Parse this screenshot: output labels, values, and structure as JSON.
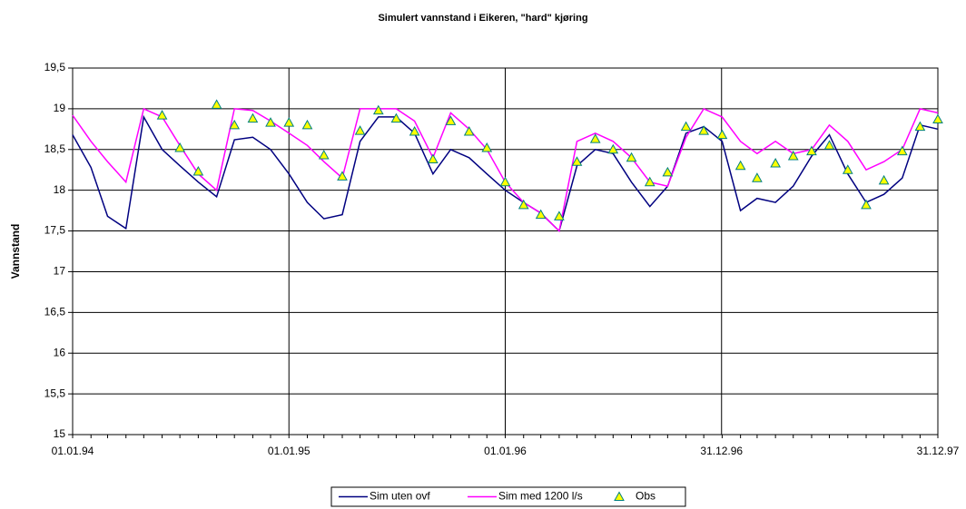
{
  "chart_data": {
    "type": "line",
    "title": "Simulert vannstand i Eikeren, \"hard\" kjøring",
    "y_label": "Vannstand",
    "x": [
      "01.01.94",
      "01.02.94",
      "01.03.94",
      "01.04.94",
      "01.05.94",
      "01.06.94",
      "01.07.94",
      "01.08.94",
      "01.09.94",
      "01.10.94",
      "01.11.94",
      "01.12.94",
      "01.01.95",
      "01.02.95",
      "01.03.95",
      "01.04.95",
      "01.05.95",
      "01.06.95",
      "01.07.95",
      "01.08.95",
      "01.09.95",
      "01.10.95",
      "01.11.95",
      "01.12.95",
      "01.01.96",
      "01.02.96",
      "01.03.96",
      "01.04.96",
      "01.05.96",
      "01.06.96",
      "01.07.96",
      "01.08.96",
      "01.09.96",
      "01.10.96",
      "01.11.96",
      "01.12.96",
      "01.01.97",
      "01.02.97",
      "01.03.97",
      "01.04.97",
      "01.05.97",
      "01.06.97",
      "01.07.97",
      "01.08.97",
      "01.09.97",
      "01.10.97",
      "01.11.97",
      "01.12.97",
      "31.12.97"
    ],
    "series": [
      {
        "name": "Sim uten ovf",
        "color": "#000080",
        "values": [
          18.68,
          18.28,
          17.68,
          17.53,
          18.9,
          18.5,
          18.3,
          18.1,
          17.92,
          18.62,
          18.65,
          18.5,
          18.2,
          17.85,
          17.65,
          17.7,
          18.6,
          18.9,
          18.9,
          18.7,
          18.2,
          18.5,
          18.4,
          18.2,
          18.0,
          17.85,
          17.72,
          17.5,
          18.3,
          18.5,
          18.45,
          18.1,
          17.8,
          18.05,
          18.7,
          18.78,
          18.6,
          17.75,
          17.9,
          17.85,
          18.05,
          18.42,
          18.68,
          18.2,
          17.85,
          17.95,
          18.15,
          18.8,
          18.75
        ]
      },
      {
        "name": "Sim med 1200 l/s",
        "color": "#ff00ff",
        "values": [
          18.92,
          18.6,
          18.35,
          18.1,
          19.0,
          18.9,
          18.55,
          18.2,
          18.0,
          19.0,
          18.98,
          18.85,
          18.7,
          18.55,
          18.35,
          18.15,
          19.0,
          19.0,
          19.0,
          18.85,
          18.4,
          18.95,
          18.75,
          18.5,
          18.1,
          17.85,
          17.72,
          17.5,
          18.6,
          18.7,
          18.6,
          18.4,
          18.1,
          18.05,
          18.65,
          19.0,
          18.9,
          18.6,
          18.45,
          18.6,
          18.45,
          18.5,
          18.8,
          18.6,
          18.25,
          18.35,
          18.5,
          19.0,
          18.95
        ]
      },
      {
        "name": "Obs",
        "color": "#ffff00",
        "edge_color": "#008080",
        "marker": "triangle",
        "x": [
          "01.06.94",
          "01.07.94",
          "01.08.94",
          "01.09.94",
          "01.10.94",
          "01.11.94",
          "01.12.94",
          "01.01.95",
          "01.02.95",
          "01.03.95",
          "01.04.95",
          "01.05.95",
          "01.06.95",
          "01.07.95",
          "01.08.95",
          "01.09.95",
          "01.10.95",
          "01.11.95",
          "01.12.95",
          "01.01.96",
          "01.02.96",
          "01.03.96",
          "01.04.96",
          "01.05.96",
          "01.06.96",
          "01.07.96",
          "01.08.96",
          "01.09.96",
          "01.10.96",
          "01.11.96",
          "01.12.96",
          "01.01.97",
          "01.02.97",
          "01.03.97",
          "01.04.97",
          "01.05.97",
          "01.06.97",
          "01.07.97",
          "01.08.97",
          "01.09.97",
          "01.10.97",
          "01.11.97",
          "01.12.97",
          "31.12.97"
        ],
        "values": [
          18.92,
          18.52,
          18.23,
          19.05,
          18.8,
          18.88,
          18.83,
          18.83,
          18.8,
          18.43,
          18.17,
          18.73,
          18.98,
          18.88,
          18.72,
          18.38,
          18.85,
          18.72,
          18.52,
          18.1,
          17.82,
          17.7,
          17.68,
          18.35,
          18.63,
          18.5,
          18.4,
          18.1,
          18.22,
          18.78,
          18.73,
          18.68,
          18.3,
          18.15,
          18.33,
          18.42,
          18.48,
          18.55,
          18.25,
          17.82,
          18.12,
          18.48,
          18.78,
          18.87
        ]
      }
    ],
    "xlim": [
      "01.01.94",
      "31.12.97"
    ],
    "xticks": [
      "01.01.94",
      "01.01.95",
      "01.01.96",
      "31.12.96",
      "31.12.97"
    ],
    "ylim": [
      15,
      19.5
    ],
    "yticks": [
      15,
      {
        "value": 15.5,
        "label": "15,5"
      },
      16,
      {
        "value": 16.5,
        "label": "16,5"
      },
      17,
      {
        "value": 17.5,
        "label": "17,5"
      },
      18,
      {
        "value": 18.5,
        "label": "18,5"
      },
      19,
      {
        "value": 19.5,
        "label": "19,5"
      }
    ],
    "grid": true,
    "legend": "bottom"
  }
}
